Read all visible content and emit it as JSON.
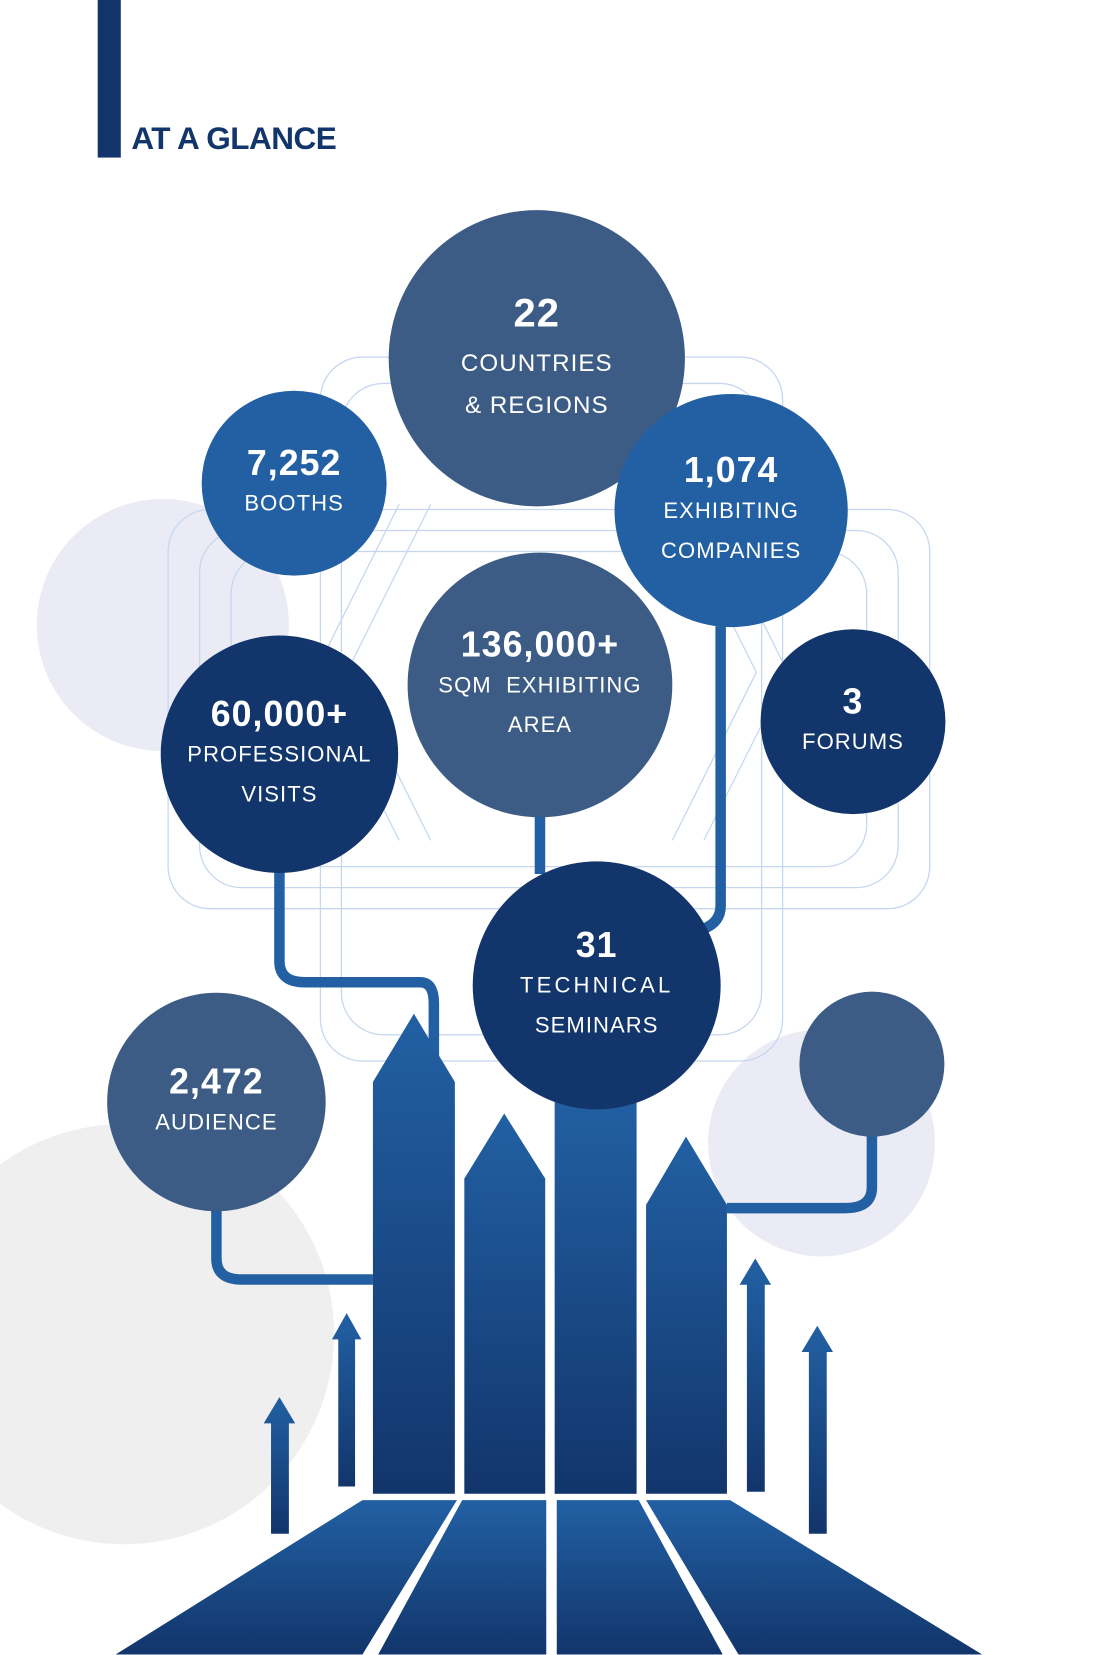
{
  "header": {
    "title": "AT A GLANCE"
  },
  "colors": {
    "navy": "#12356b",
    "blue": "#2260a3",
    "slate": "#3d5c85",
    "lavender": "#ebebf5",
    "grey": "#efefef"
  },
  "stats": [
    {
      "value": "22",
      "label1": "COUNTRIES",
      "label2": "& REGIONS"
    },
    {
      "value": "7,252",
      "label1": "BOOTHS",
      "label2": ""
    },
    {
      "value": "1,074",
      "label1": "EXHIBITING",
      "label2": "COMPANIES"
    },
    {
      "value": "136,000+",
      "label1": "SQM  EXHIBITING",
      "label2": "AREA"
    },
    {
      "value": "60,000+",
      "label1": "PROFESSIONAL",
      "label2": "VISITS"
    },
    {
      "value": "3",
      "label1": "FORUMS",
      "label2": ""
    },
    {
      "value": "31",
      "label1": "TECHNICAL",
      "label2": "SEMINARS"
    },
    {
      "value": "2,472",
      "label1": "AUDIENCE",
      "label2": ""
    }
  ]
}
